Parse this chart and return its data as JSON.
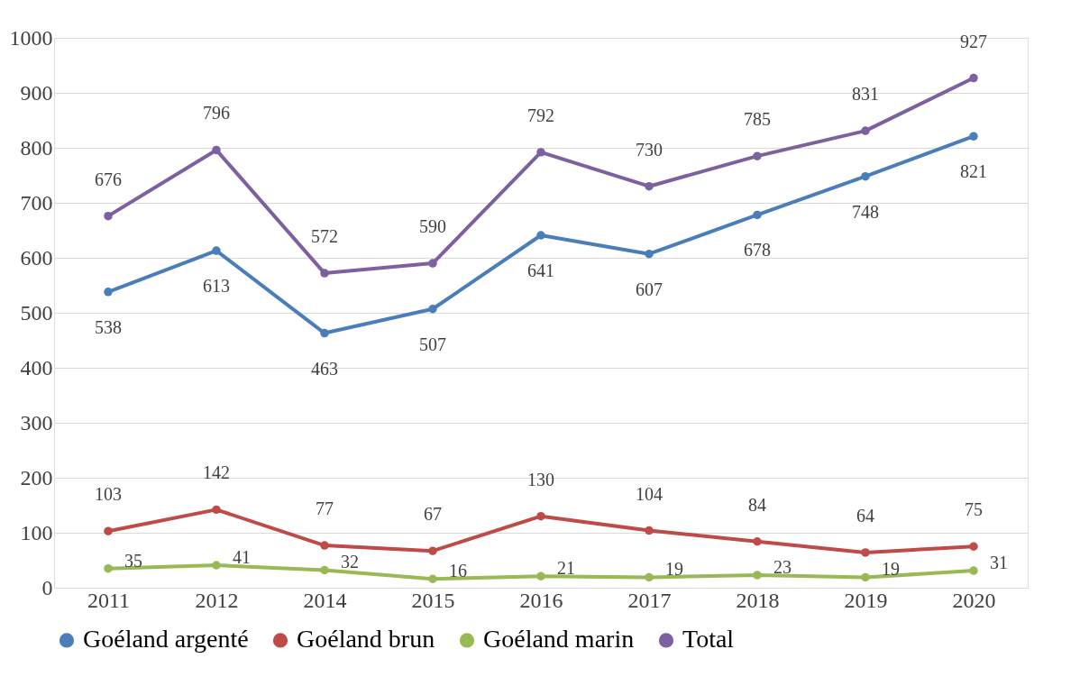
{
  "chart_data": {
    "type": "line",
    "categories": [
      "2011",
      "2012",
      "2014",
      "2015",
      "2016",
      "2017",
      "2018",
      "2019",
      "2020"
    ],
    "series": [
      {
        "name": "Goéland argenté",
        "color": "#4a7ebb",
        "values": [
          538,
          613,
          463,
          507,
          641,
          607,
          678,
          748,
          821
        ]
      },
      {
        "name": "Goéland brun",
        "color": "#be4b48",
        "values": [
          103,
          142,
          77,
          67,
          130,
          104,
          84,
          64,
          75
        ]
      },
      {
        "name": "Goéland marin",
        "color": "#98b954",
        "values": [
          35,
          41,
          32,
          16,
          21,
          19,
          23,
          19,
          31
        ]
      },
      {
        "name": "Total",
        "color": "#7d60a0",
        "values": [
          676,
          796,
          572,
          590,
          792,
          730,
          785,
          831,
          927
        ]
      }
    ],
    "ylim": [
      0,
      1000
    ],
    "yticks": [
      0,
      100,
      200,
      300,
      400,
      500,
      600,
      700,
      800,
      900,
      1000
    ],
    "grid": "y",
    "legend": "bottom",
    "marker": "circle",
    "line_style": "solid",
    "data_labels": true
  }
}
